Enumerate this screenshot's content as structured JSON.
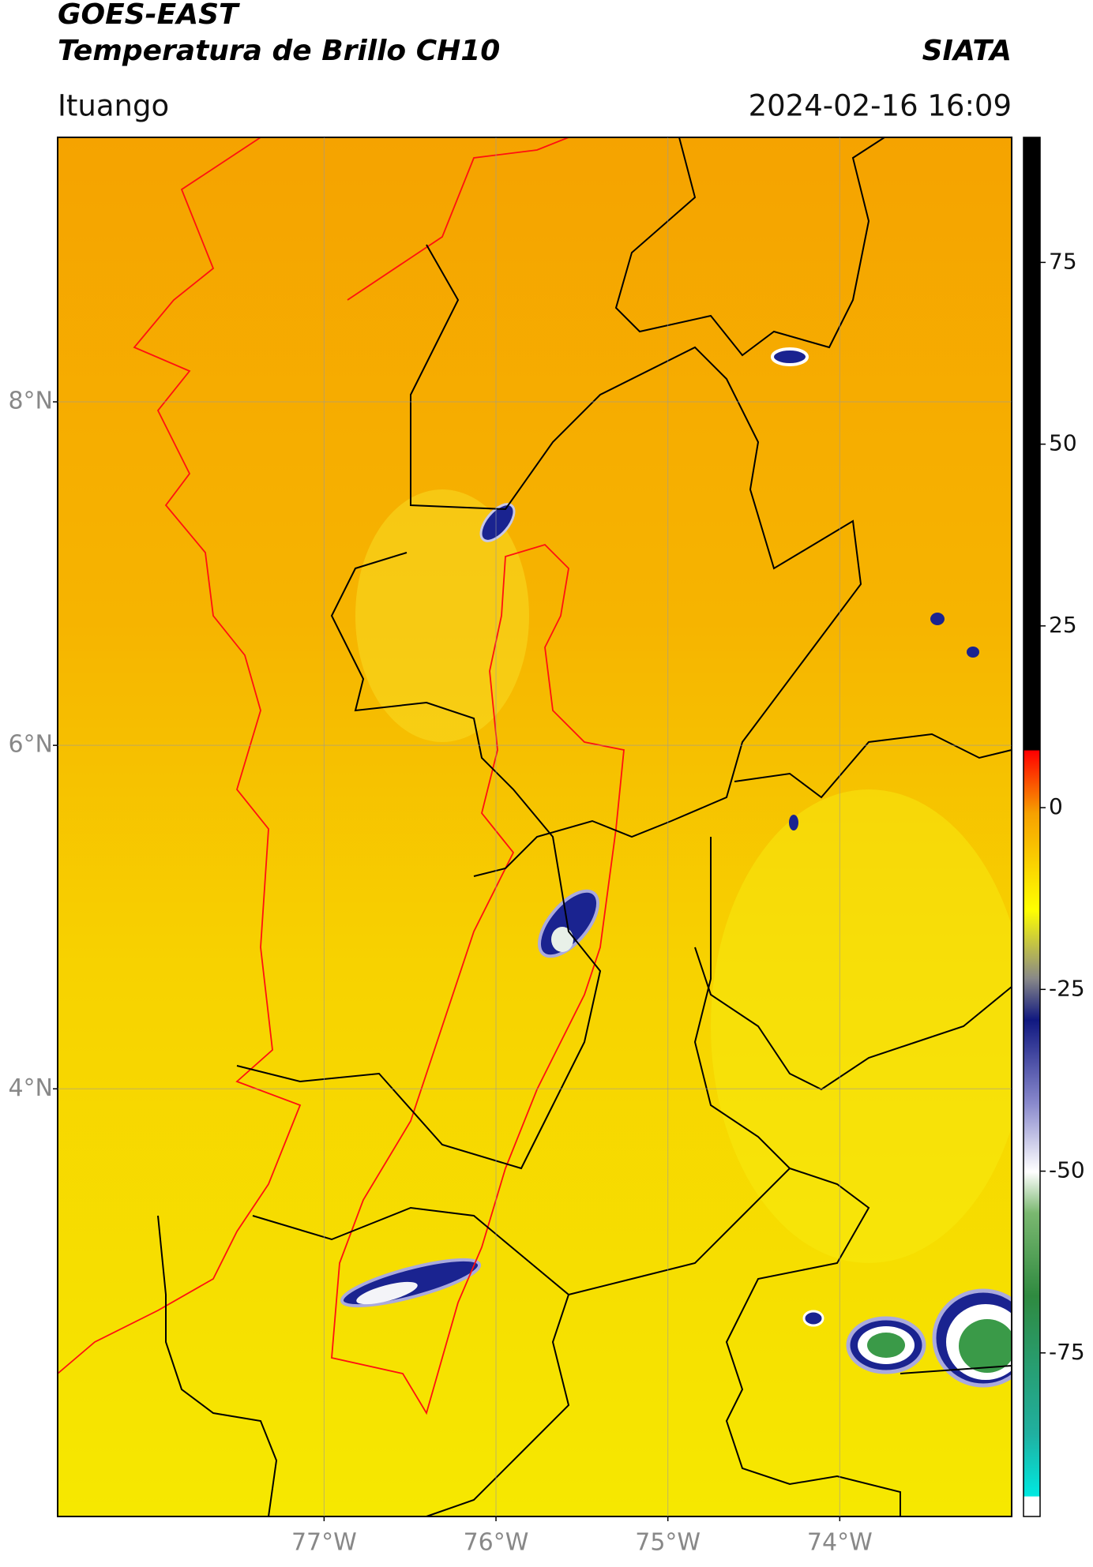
{
  "header": {
    "title": "GOES-EAST",
    "subtitle": "Temperatura de Brillo CH10",
    "source": "SIATA",
    "location": "Ituango",
    "timestamp": "2024-02-16 16:09"
  },
  "map": {
    "lonlim": [
      -78.55,
      -73.0
    ],
    "latlim": [
      1.51,
      9.54
    ],
    "lon_ticks": [
      {
        "value": -77,
        "label": "77°W"
      },
      {
        "value": -76,
        "label": "76°W"
      },
      {
        "value": -75,
        "label": "75°W"
      },
      {
        "value": -74,
        "label": "74°W"
      }
    ],
    "lat_ticks": [
      {
        "value": 8,
        "label": "8°N"
      },
      {
        "value": 6,
        "label": "6°N"
      },
      {
        "value": 4,
        "label": "4°N"
      }
    ],
    "grid": true
  },
  "colorbar": {
    "lim": [
      -97.5,
      92.2
    ],
    "ticks": [
      75,
      50,
      25,
      0,
      -25,
      -50,
      -75
    ]
  }
}
